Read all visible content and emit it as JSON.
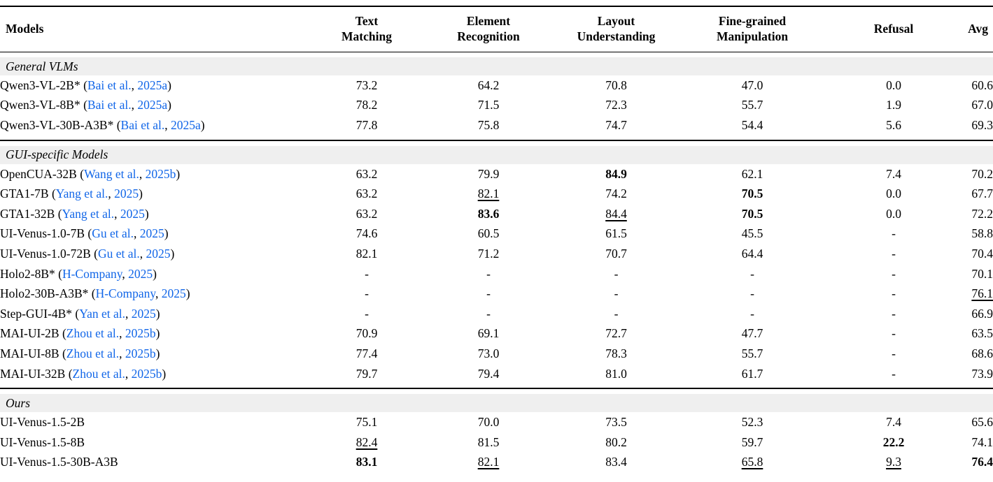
{
  "meta": {
    "link_color": "#1166E8",
    "band_bg": "#EFEFEF"
  },
  "header": {
    "columns": [
      {
        "label": "Models"
      },
      {
        "label": "Text\nMatching"
      },
      {
        "label": "Element\nRecognition"
      },
      {
        "label": "Layout\nUnderstanding"
      },
      {
        "label": "Fine-grained\nManipulation"
      },
      {
        "label": "Refusal"
      },
      {
        "label": "Avg"
      }
    ]
  },
  "sections": [
    {
      "title": "General VLMs",
      "rows": [
        {
          "model": [
            {
              "t": "Qwen3-VL-2B* (",
              "k": "text"
            },
            {
              "t": "Bai et al.",
              "k": "link"
            },
            {
              "t": ", ",
              "k": "text"
            },
            {
              "t": "2025a",
              "k": "link"
            },
            {
              "t": ")",
              "k": "text"
            }
          ],
          "values": [
            {
              "t": "73.2",
              "s": ""
            },
            {
              "t": "64.2",
              "s": ""
            },
            {
              "t": "70.8",
              "s": ""
            },
            {
              "t": "47.0",
              "s": ""
            },
            {
              "t": "0.0",
              "s": ""
            },
            {
              "t": "60.6",
              "s": ""
            }
          ]
        },
        {
          "model": [
            {
              "t": "Qwen3-VL-8B* (",
              "k": "text"
            },
            {
              "t": "Bai et al.",
              "k": "link"
            },
            {
              "t": ", ",
              "k": "text"
            },
            {
              "t": "2025a",
              "k": "link"
            },
            {
              "t": ")",
              "k": "text"
            }
          ],
          "values": [
            {
              "t": "78.2",
              "s": ""
            },
            {
              "t": "71.5",
              "s": ""
            },
            {
              "t": "72.3",
              "s": ""
            },
            {
              "t": "55.7",
              "s": ""
            },
            {
              "t": "1.9",
              "s": ""
            },
            {
              "t": "67.0",
              "s": ""
            }
          ]
        },
        {
          "model": [
            {
              "t": "Qwen3-VL-30B-A3B* (",
              "k": "text"
            },
            {
              "t": "Bai et al.",
              "k": "link"
            },
            {
              "t": ", ",
              "k": "text"
            },
            {
              "t": "2025a",
              "k": "link"
            },
            {
              "t": ")",
              "k": "text"
            }
          ],
          "values": [
            {
              "t": "77.8",
              "s": ""
            },
            {
              "t": "75.8",
              "s": ""
            },
            {
              "t": "74.7",
              "s": ""
            },
            {
              "t": "54.4",
              "s": ""
            },
            {
              "t": "5.6",
              "s": ""
            },
            {
              "t": "69.3",
              "s": ""
            }
          ]
        }
      ]
    },
    {
      "title": "GUI-specific Models",
      "rows": [
        {
          "model": [
            {
              "t": "OpenCUA-32B (",
              "k": "text"
            },
            {
              "t": "Wang et al.",
              "k": "link"
            },
            {
              "t": ", ",
              "k": "text"
            },
            {
              "t": "2025b",
              "k": "link"
            },
            {
              "t": ")",
              "k": "text"
            }
          ],
          "values": [
            {
              "t": "63.2",
              "s": ""
            },
            {
              "t": "79.9",
              "s": ""
            },
            {
              "t": "84.9",
              "s": "b"
            },
            {
              "t": "62.1",
              "s": ""
            },
            {
              "t": "7.4",
              "s": ""
            },
            {
              "t": "70.2",
              "s": ""
            }
          ]
        },
        {
          "model": [
            {
              "t": "GTA1-7B (",
              "k": "text"
            },
            {
              "t": "Yang et al.",
              "k": "link"
            },
            {
              "t": ", ",
              "k": "text"
            },
            {
              "t": "2025",
              "k": "link"
            },
            {
              "t": ")",
              "k": "text"
            }
          ],
          "values": [
            {
              "t": "63.2",
              "s": ""
            },
            {
              "t": "82.1",
              "s": "u"
            },
            {
              "t": "74.2",
              "s": ""
            },
            {
              "t": "70.5",
              "s": "b"
            },
            {
              "t": "0.0",
              "s": ""
            },
            {
              "t": "67.7",
              "s": ""
            }
          ]
        },
        {
          "model": [
            {
              "t": "GTA1-32B (",
              "k": "text"
            },
            {
              "t": "Yang et al.",
              "k": "link"
            },
            {
              "t": ", ",
              "k": "text"
            },
            {
              "t": "2025",
              "k": "link"
            },
            {
              "t": ")",
              "k": "text"
            }
          ],
          "values": [
            {
              "t": "63.2",
              "s": ""
            },
            {
              "t": "83.6",
              "s": "b"
            },
            {
              "t": "84.4",
              "s": "u"
            },
            {
              "t": "70.5",
              "s": "b"
            },
            {
              "t": "0.0",
              "s": ""
            },
            {
              "t": "72.2",
              "s": ""
            }
          ]
        },
        {
          "model": [
            {
              "t": "UI-Venus-1.0-7B (",
              "k": "text"
            },
            {
              "t": "Gu et al.",
              "k": "link"
            },
            {
              "t": ", ",
              "k": "text"
            },
            {
              "t": "2025",
              "k": "link"
            },
            {
              "t": ")",
              "k": "text"
            }
          ],
          "values": [
            {
              "t": "74.6",
              "s": ""
            },
            {
              "t": "60.5",
              "s": ""
            },
            {
              "t": "61.5",
              "s": ""
            },
            {
              "t": "45.5",
              "s": ""
            },
            {
              "t": "-",
              "s": ""
            },
            {
              "t": "58.8",
              "s": ""
            }
          ]
        },
        {
          "model": [
            {
              "t": "UI-Venus-1.0-72B (",
              "k": "text"
            },
            {
              "t": "Gu et al.",
              "k": "link"
            },
            {
              "t": ", ",
              "k": "text"
            },
            {
              "t": "2025",
              "k": "link"
            },
            {
              "t": ")",
              "k": "text"
            }
          ],
          "values": [
            {
              "t": "82.1",
              "s": ""
            },
            {
              "t": "71.2",
              "s": ""
            },
            {
              "t": "70.7",
              "s": ""
            },
            {
              "t": "64.4",
              "s": ""
            },
            {
              "t": "-",
              "s": ""
            },
            {
              "t": "70.4",
              "s": ""
            }
          ]
        },
        {
          "model": [
            {
              "t": "Holo2-8B* (",
              "k": "text"
            },
            {
              "t": "H-Company",
              "k": "link"
            },
            {
              "t": ", ",
              "k": "text"
            },
            {
              "t": "2025",
              "k": "link"
            },
            {
              "t": ")",
              "k": "text"
            }
          ],
          "values": [
            {
              "t": "-",
              "s": ""
            },
            {
              "t": "-",
              "s": ""
            },
            {
              "t": "-",
              "s": ""
            },
            {
              "t": "-",
              "s": ""
            },
            {
              "t": "-",
              "s": ""
            },
            {
              "t": "70.1",
              "s": ""
            }
          ]
        },
        {
          "model": [
            {
              "t": "Holo2-30B-A3B* (",
              "k": "text"
            },
            {
              "t": "H-Company",
              "k": "link"
            },
            {
              "t": ", ",
              "k": "text"
            },
            {
              "t": "2025",
              "k": "link"
            },
            {
              "t": ")",
              "k": "text"
            }
          ],
          "values": [
            {
              "t": "-",
              "s": ""
            },
            {
              "t": "-",
              "s": ""
            },
            {
              "t": "-",
              "s": ""
            },
            {
              "t": "-",
              "s": ""
            },
            {
              "t": "-",
              "s": ""
            },
            {
              "t": "76.1",
              "s": "u"
            }
          ]
        },
        {
          "model": [
            {
              "t": "Step-GUI-4B* (",
              "k": "text"
            },
            {
              "t": "Yan et al.",
              "k": "link"
            },
            {
              "t": ", ",
              "k": "text"
            },
            {
              "t": "2025",
              "k": "link"
            },
            {
              "t": ")",
              "k": "text"
            }
          ],
          "values": [
            {
              "t": "-",
              "s": ""
            },
            {
              "t": "-",
              "s": ""
            },
            {
              "t": "-",
              "s": ""
            },
            {
              "t": "-",
              "s": ""
            },
            {
              "t": "-",
              "s": ""
            },
            {
              "t": "66.9",
              "s": ""
            }
          ]
        },
        {
          "model": [
            {
              "t": "MAI-UI-2B (",
              "k": "text"
            },
            {
              "t": "Zhou et al.",
              "k": "link"
            },
            {
              "t": ", ",
              "k": "text"
            },
            {
              "t": "2025b",
              "k": "link"
            },
            {
              "t": ")",
              "k": "text"
            }
          ],
          "values": [
            {
              "t": "70.9",
              "s": ""
            },
            {
              "t": "69.1",
              "s": ""
            },
            {
              "t": "72.7",
              "s": ""
            },
            {
              "t": "47.7",
              "s": ""
            },
            {
              "t": "-",
              "s": ""
            },
            {
              "t": "63.5",
              "s": ""
            }
          ]
        },
        {
          "model": [
            {
              "t": "MAI-UI-8B (",
              "k": "text"
            },
            {
              "t": "Zhou et al.",
              "k": "link"
            },
            {
              "t": ", ",
              "k": "text"
            },
            {
              "t": "2025b",
              "k": "link"
            },
            {
              "t": ")",
              "k": "text"
            }
          ],
          "values": [
            {
              "t": "77.4",
              "s": ""
            },
            {
              "t": "73.0",
              "s": ""
            },
            {
              "t": "78.3",
              "s": ""
            },
            {
              "t": "55.7",
              "s": ""
            },
            {
              "t": "-",
              "s": ""
            },
            {
              "t": "68.6",
              "s": ""
            }
          ]
        },
        {
          "model": [
            {
              "t": "MAI-UI-32B (",
              "k": "text"
            },
            {
              "t": "Zhou et al.",
              "k": "link"
            },
            {
              "t": ", ",
              "k": "text"
            },
            {
              "t": "2025b",
              "k": "link"
            },
            {
              "t": ")",
              "k": "text"
            }
          ],
          "values": [
            {
              "t": "79.7",
              "s": ""
            },
            {
              "t": "79.4",
              "s": ""
            },
            {
              "t": "81.0",
              "s": ""
            },
            {
              "t": "61.7",
              "s": ""
            },
            {
              "t": "-",
              "s": ""
            },
            {
              "t": "73.9",
              "s": ""
            }
          ]
        }
      ]
    },
    {
      "title": "Ours",
      "rows": [
        {
          "model": [
            {
              "t": "UI-Venus-1.5-2B",
              "k": "text"
            }
          ],
          "values": [
            {
              "t": "75.1",
              "s": ""
            },
            {
              "t": "70.0",
              "s": ""
            },
            {
              "t": "73.5",
              "s": ""
            },
            {
              "t": "52.3",
              "s": ""
            },
            {
              "t": "7.4",
              "s": ""
            },
            {
              "t": "65.6",
              "s": ""
            }
          ]
        },
        {
          "model": [
            {
              "t": "UI-Venus-1.5-8B",
              "k": "text"
            }
          ],
          "values": [
            {
              "t": "82.4",
              "s": "u"
            },
            {
              "t": "81.5",
              "s": ""
            },
            {
              "t": "80.2",
              "s": ""
            },
            {
              "t": "59.7",
              "s": ""
            },
            {
              "t": "22.2",
              "s": "b"
            },
            {
              "t": "74.1",
              "s": ""
            }
          ]
        },
        {
          "model": [
            {
              "t": "UI-Venus-1.5-30B-A3B",
              "k": "text"
            }
          ],
          "values": [
            {
              "t": "83.1",
              "s": "b"
            },
            {
              "t": "82.1",
              "s": "u"
            },
            {
              "t": "83.4",
              "s": ""
            },
            {
              "t": "65.8",
              "s": "u"
            },
            {
              "t": "9.3",
              "s": "u"
            },
            {
              "t": "76.4",
              "s": "b"
            }
          ]
        }
      ]
    }
  ]
}
